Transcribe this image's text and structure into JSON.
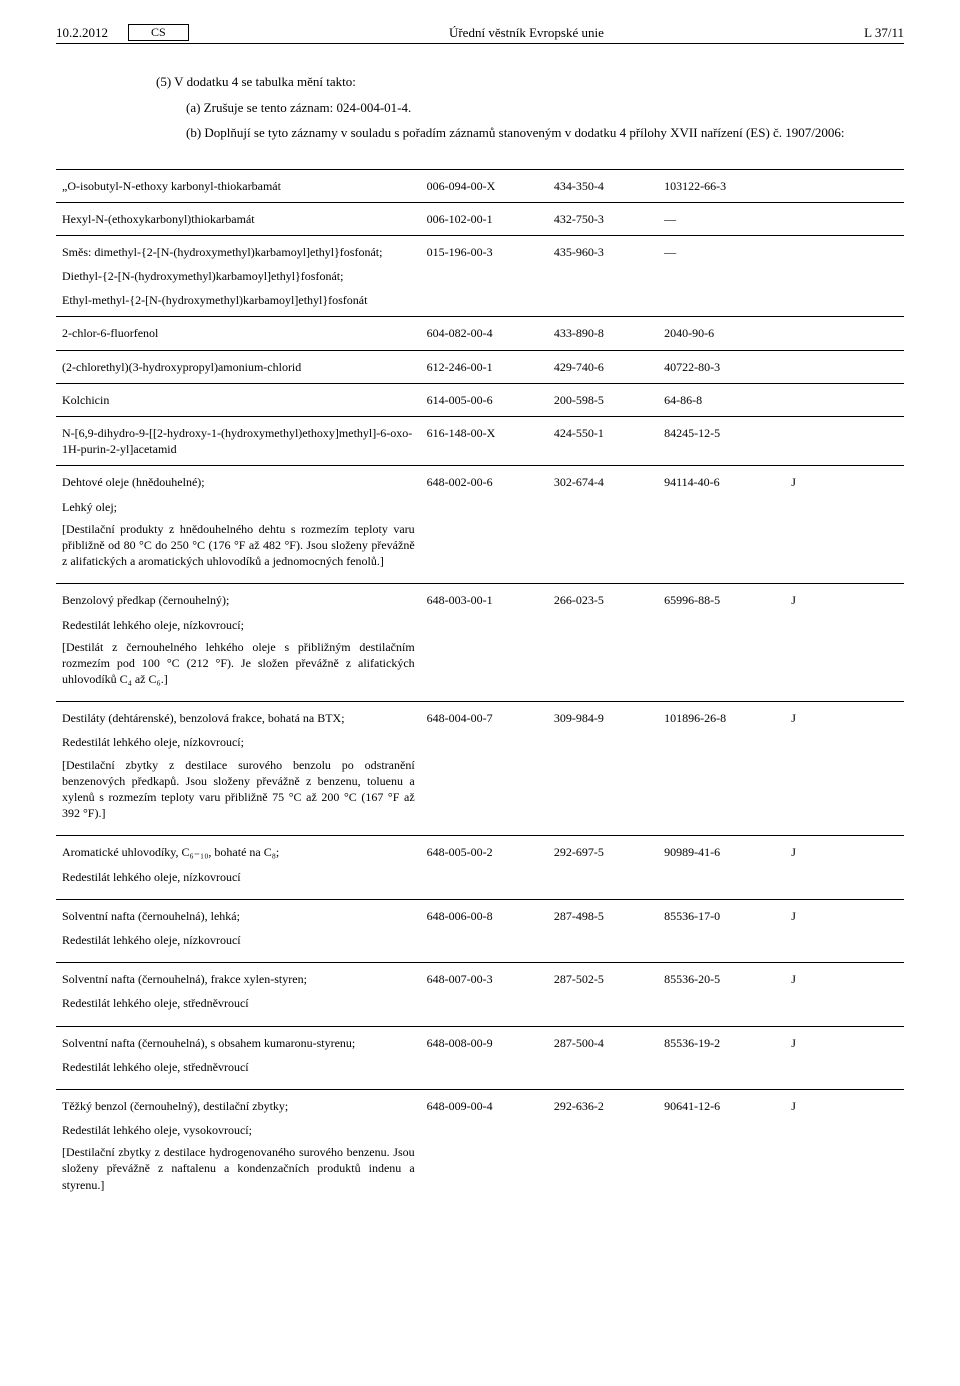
{
  "header": {
    "date": "10.2.2012",
    "lang": "CS",
    "journal": "Úřední věstník Evropské unie",
    "page": "L 37/11"
  },
  "intro": {
    "line1": "(5) V dodatku 4 se tabulka mění takto:",
    "line2": "(a) Zrušuje se tento záznam: 024-004-01-4.",
    "line3": "(b) Doplňují se tyto záznamy v souladu s pořadím záznamů stanoveným v dodatku 4 přílohy XVII nařízení (ES) č. 1907/2006:"
  },
  "rows": [
    {
      "name": "„O-isobutyl-N-ethoxy karbonyl-thiokarbamát",
      "c2": "006-094-00-X",
      "c3": "434-350-4",
      "c4": "103122-66-3",
      "c5": "",
      "c6": "",
      "c7": ""
    },
    {
      "name": "Hexyl-N-(ethoxykarbonyl)thiokarbamát",
      "c2": "006-102-00-1",
      "c3": "432-750-3",
      "c4": "—",
      "c5": "",
      "c6": "",
      "c7": ""
    },
    {
      "name": "Směs: dimethyl-{2-[N-(hydroxymethyl)karbamoyl]ethyl}fosfonát;\nDiethyl-{2-[N-(hydroxymethyl)karbamoyl]ethyl}fosfonát;\nEthyl-methyl-{2-[N-(hydroxymethyl)karbamoyl]ethyl}fosfonát",
      "c2": "015-196-00-3",
      "c3": "435-960-3",
      "c4": "—",
      "c5": "",
      "c6": "",
      "c7": ""
    },
    {
      "name": "2-chlor-6-fluorfenol",
      "c2": "604-082-00-4",
      "c3": "433-890-8",
      "c4": "2040-90-6",
      "c5": "",
      "c6": "",
      "c7": ""
    },
    {
      "name": "(2-chlorethyl)(3-hydroxypropyl)amonium-chlorid",
      "c2": "612-246-00-1",
      "c3": "429-740-6",
      "c4": "40722-80-3",
      "c5": "",
      "c6": "",
      "c7": ""
    },
    {
      "name": "Kolchicin",
      "c2": "614-005-00-6",
      "c3": "200-598-5",
      "c4": "64-86-8",
      "c5": "",
      "c6": "",
      "c7": ""
    },
    {
      "name": "N-[6,9-dihydro-9-[[2-hydroxy-1-(hydroxymethyl)ethoxy]methyl]-6-oxo-1H-purin-2-yl]acetamid",
      "c2": "616-148-00-X",
      "c3": "424-550-1",
      "c4": "84245-12-5",
      "c5": "",
      "c6": "",
      "c7": ""
    },
    {
      "name": "Dehtové oleje (hnědouhelné);",
      "extra1": "Lehký olej;",
      "extra2": "[Destilační produkty z hnědouhelného dehtu s rozmezím teploty varu přibližně od 80 °C do 250 °C (176 °F až 482 °F). Jsou složeny převážně z alifatických a aromatických uhlovodíků a jednomocných fenolů.]",
      "c2": "648-002-00-6",
      "c3": "302-674-4",
      "c4": "94114-40-6",
      "c5": "J",
      "c6": "",
      "c7": ""
    },
    {
      "name": "Benzolový předkap (černouhelný);",
      "extra1": "Redestilát lehkého oleje, nízkovroucí;",
      "extra2": "[Destilát z černouhelného lehkého oleje s přibližným destilačním rozmezím pod 100 °C (212 °F). Je složen převážně z alifatických uhlovodíků C₄ až C₆.]",
      "c2": "648-003-00-1",
      "c3": "266-023-5",
      "c4": "65996-88-5",
      "c5": "J",
      "c6": "",
      "c7": ""
    },
    {
      "name": "Destiláty (dehtárenské), benzolová frakce, bohatá na BTX;",
      "extra1": "Redestilát lehkého oleje, nízkovroucí;",
      "extra2": "[Destilační zbytky z destilace surového benzolu po odstranění benzenových předkapů. Jsou složeny převážně z benzenu, toluenu a xylenů s rozmezím teploty varu přibližně 75 °C až 200 °C (167 °F až 392 °F).]",
      "c2": "648-004-00-7",
      "c3": "309-984-9",
      "c4": "101896-26-8",
      "c5": "J",
      "c6": "",
      "c7": ""
    },
    {
      "name": "Aromatické uhlovodíky, C₆₋₁₀, bohaté na C₈;",
      "extra1": "Redestilát lehkého oleje, nízkovroucí",
      "c2": "648-005-00-2",
      "c3": "292-697-5",
      "c4": "90989-41-6",
      "c5": "J",
      "c6": "",
      "c7": ""
    },
    {
      "name": "Solventní nafta (černouhelná), lehká;",
      "extra1": "Redestilát lehkého oleje, nízkovroucí",
      "c2": "648-006-00-8",
      "c3": "287-498-5",
      "c4": "85536-17-0",
      "c5": "J",
      "c6": "",
      "c7": ""
    },
    {
      "name": "Solventní nafta (černouhelná), frakce xylen-styren;",
      "extra1": "Redestilát lehkého oleje, středněvroucí",
      "c2": "648-007-00-3",
      "c3": "287-502-5",
      "c4": "85536-20-5",
      "c5": "J",
      "c6": "",
      "c7": ""
    },
    {
      "name": "Solventní nafta (černouhelná), s obsahem kumaronu-styrenu;",
      "extra1": "Redestilát lehkého oleje, středněvroucí",
      "c2": "648-008-00-9",
      "c3": "287-500-4",
      "c4": "85536-19-2",
      "c5": "J",
      "c6": "",
      "c7": ""
    },
    {
      "name": "Těžký benzol (černouhelný), destilační zbytky;",
      "extra1": "Redestilát lehkého oleje, vysokovroucí;",
      "extra2": "[Destilační zbytky z destilace hydrogenovaného surového benzenu. Jsou složeny převážně z naftalenu a kondenzačních produktů indenu a styrenu.]",
      "c2": "648-009-00-4",
      "c3": "292-636-2",
      "c4": "90641-12-6",
      "c5": "J",
      "c6": "",
      "c7": ""
    }
  ]
}
